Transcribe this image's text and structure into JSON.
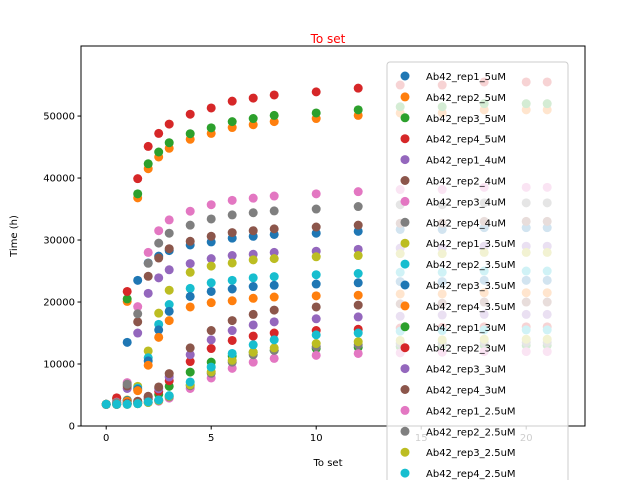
{
  "chart_data": {
    "type": "scatter",
    "title": "To set",
    "title_color": "#ff0000",
    "x_label": "To set",
    "y_label": "Time (h)",
    "xlim": [
      -1.2,
      22.8
    ],
    "ylim": [
      0,
      61300
    ],
    "xticks": [
      0,
      5,
      10,
      15,
      20
    ],
    "yticks": [
      0,
      10000,
      20000,
      30000,
      40000,
      50000
    ],
    "grid": false,
    "legend": "upper right",
    "x": [
      0,
      0.5,
      1,
      1.5,
      2,
      2.5,
      3,
      4,
      5,
      6,
      7,
      8,
      10,
      12,
      14,
      16,
      18,
      20,
      21
    ],
    "series": [
      {
        "name": "Ab42_rep1_5uM",
        "color": "#1f77b4",
        "values": [
          3500,
          4070,
          13500,
          23500,
          26300,
          27400,
          28300,
          29200,
          29700,
          30300,
          30600,
          30900,
          31100,
          31400,
          31700,
          31700,
          32000,
          32000,
          32000
        ]
      },
      {
        "name": "Ab42_rep2_5uM",
        "color": "#ff7f0e",
        "values": [
          3500,
          4450,
          20100,
          36800,
          41500,
          43400,
          44800,
          46250,
          47200,
          48150,
          48600,
          49100,
          49600,
          50100,
          50500,
          50500,
          51000,
          51000,
          51000
        ]
      },
      {
        "name": "Ab42_rep3_5uM",
        "color": "#2ca02c",
        "values": [
          3500,
          4470,
          20500,
          37450,
          42300,
          44200,
          45700,
          47150,
          48100,
          49100,
          49600,
          50100,
          50500,
          51000,
          51500,
          51500,
          52000,
          52000,
          52000
        ]
      },
      {
        "name": "Ab42_rep4_5uM",
        "color": "#d62728",
        "values": [
          3500,
          4540,
          21700,
          39900,
          45100,
          47200,
          48700,
          50300,
          51300,
          52400,
          52900,
          53400,
          53900,
          54500,
          55000,
          55000,
          55500,
          55500,
          55500
        ]
      },
      {
        "name": "Ab42_rep1_4uM",
        "color": "#9467bd",
        "values": [
          3500,
          3800,
          6050,
          15000,
          21400,
          23900,
          25200,
          26200,
          27000,
          27500,
          27700,
          28000,
          28200,
          28500,
          28700,
          28700,
          29000,
          29000,
          29000
        ]
      },
      {
        "name": "Ab42_rep2_4uM",
        "color": "#8c564b",
        "values": [
          3500,
          3800,
          6450,
          16800,
          24150,
          27100,
          28600,
          29800,
          30600,
          31200,
          31500,
          31800,
          32100,
          32400,
          32700,
          32700,
          33000,
          33000,
          33000
        ]
      },
      {
        "name": "Ab42_rep3_4uM",
        "color": "#e377c2",
        "values": [
          3500,
          3850,
          7000,
          19250,
          28000,
          31500,
          33250,
          34650,
          35700,
          36400,
          36750,
          37100,
          37450,
          37800,
          38150,
          38150,
          38500,
          38500,
          38500
        ]
      },
      {
        "name": "Ab42_rep4_4uM",
        "color": "#7f7f7f",
        "values": [
          3500,
          3800,
          6750,
          18100,
          26250,
          29500,
          31100,
          32400,
          33400,
          34050,
          34400,
          34700,
          35000,
          35400,
          35700,
          35700,
          36000,
          36000,
          36000
        ]
      },
      {
        "name": "Ab42_rep1_3.5uM",
        "color": "#bcbd22",
        "values": [
          3500,
          3500,
          4200,
          6400,
          12100,
          18200,
          21900,
          24800,
          25800,
          26300,
          26800,
          27000,
          27300,
          27500,
          27800,
          27800,
          28000,
          28000,
          28000
        ]
      },
      {
        "name": "Ab42_rep2_3.5uM",
        "color": "#17becf",
        "values": [
          3500,
          3500,
          4100,
          6100,
          11000,
          16400,
          19600,
          22200,
          23100,
          23500,
          23900,
          24100,
          24400,
          24600,
          24800,
          24800,
          25000,
          25000,
          25000
        ]
      },
      {
        "name": "Ab42_rep3_3.5uM",
        "color": "#1f77b4",
        "values": [
          3500,
          3500,
          4100,
          5900,
          10500,
          15500,
          18500,
          20900,
          21700,
          22100,
          22500,
          22700,
          22900,
          23100,
          23300,
          23300,
          23500,
          23500,
          23500
        ]
      },
      {
        "name": "Ab42_rep4_3.5uM",
        "color": "#ff7f0e",
        "values": [
          3500,
          3500,
          4000,
          5700,
          9800,
          14300,
          17000,
          19200,
          19900,
          20200,
          20600,
          20800,
          21000,
          21100,
          21300,
          21300,
          21500,
          21500,
          21500
        ]
      },
      {
        "name": "Ab42_rep1_3uM",
        "color": "#2ca02c",
        "values": [
          3500,
          3500,
          3600,
          3800,
          4300,
          5100,
          6400,
          8700,
          10300,
          11300,
          11900,
          12200,
          12500,
          12700,
          12800,
          12900,
          13000,
          13000,
          13000
        ]
      },
      {
        "name": "Ab42_rep2_3uM",
        "color": "#d62728",
        "values": [
          3500,
          3500,
          3600,
          3900,
          4500,
          5600,
          7300,
          10400,
          12500,
          13800,
          14500,
          15000,
          15400,
          15600,
          15800,
          15900,
          16000,
          16000,
          16000
        ]
      },
      {
        "name": "Ab42_rep3_3uM",
        "color": "#9467bd",
        "values": [
          3500,
          3500,
          3600,
          3900,
          4700,
          6000,
          7900,
          11500,
          13900,
          15400,
          16300,
          16800,
          17300,
          17600,
          17700,
          17900,
          18000,
          18000,
          18000
        ]
      },
      {
        "name": "Ab42_rep4_3uM",
        "color": "#8c564b",
        "values": [
          3500,
          3500,
          3700,
          4000,
          4800,
          6300,
          8450,
          12600,
          15400,
          17000,
          18000,
          18700,
          19200,
          19500,
          19700,
          19800,
          20000,
          20000,
          20000
        ]
      },
      {
        "name": "Ab42_rep1_2.5uM",
        "color": "#e377c2",
        "values": [
          3500,
          3500,
          3500,
          3600,
          3800,
          4000,
          4500,
          6050,
          7750,
          9300,
          10300,
          10900,
          11400,
          11700,
          11800,
          11900,
          12000,
          12000,
          12000
        ]
      },
      {
        "name": "Ab42_rep2_2.5uM",
        "color": "#7f7f7f",
        "values": [
          3500,
          3500,
          3500,
          3600,
          3800,
          4100,
          4700,
          6500,
          8500,
          10300,
          11500,
          12200,
          12800,
          13100,
          13300,
          13400,
          13500,
          13500,
          13500
        ]
      },
      {
        "name": "Ab42_rep3_2.5uM",
        "color": "#bcbd22",
        "values": [
          3500,
          3500,
          3500,
          3600,
          3800,
          4100,
          4800,
          6650,
          8750,
          10600,
          11900,
          12600,
          13300,
          13600,
          13800,
          13900,
          14000,
          14000,
          14000
        ]
      },
      {
        "name": "Ab42_rep4_2.5uM",
        "color": "#17becf",
        "values": [
          3500,
          3500,
          3500,
          3600,
          3900,
          4200,
          4900,
          7100,
          9500,
          11700,
          13100,
          13900,
          14700,
          15000,
          15300,
          15400,
          15500,
          15500,
          15500
        ]
      }
    ]
  }
}
